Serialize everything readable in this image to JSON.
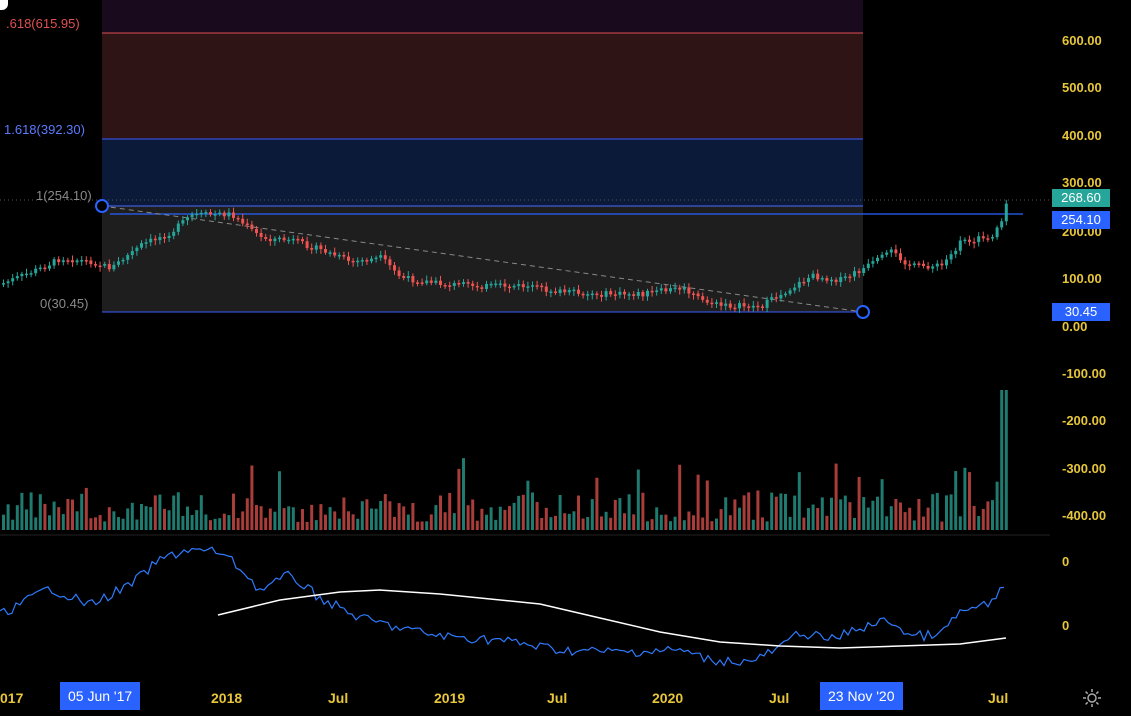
{
  "fib_levels": [
    {
      "label": ".618(615.95)",
      "color": "#e05050"
    },
    {
      "label": "1.618(392.30)",
      "color": "#5b7bff"
    },
    {
      "label": "1(254.10)",
      "color": "#8a8a8a"
    },
    {
      "label": "0(30.45)",
      "color": "#8a8a8a"
    }
  ],
  "price_axis": {
    "ticks": [
      "600.00",
      "500.00",
      "400.00",
      "300.00",
      "200.00",
      "100.00",
      "0.00",
      "-100.00",
      "-200.00",
      "-300.00",
      "-400.00"
    ],
    "current_price": "268.60",
    "marker_1": "254.10",
    "marker_0": "30.45"
  },
  "oscillator_axis": {
    "ticks": [
      "0",
      "0"
    ]
  },
  "time_axis": {
    "labels": [
      "017",
      "2018",
      "Jul",
      "2019",
      "Jul",
      "2020",
      "Jul",
      "Jul"
    ],
    "start_badge": "05 Jun '17",
    "end_badge": "23 Nov '20"
  },
  "colors": {
    "up": "#26a69a",
    "down": "#ef5350",
    "accent": "#2962ff",
    "axis_text": "#e7c63b",
    "fib_red_zone": "#2e1414",
    "fib_blue_zone": "#0c1a3a",
    "fib_gray_zone": "#1e1e1e",
    "fib_top_zone": "#1a0a1e",
    "osc_line": "#2e7bff",
    "osc_signal": "#ffffff"
  },
  "icons": {
    "settings": "gear-icon"
  }
}
